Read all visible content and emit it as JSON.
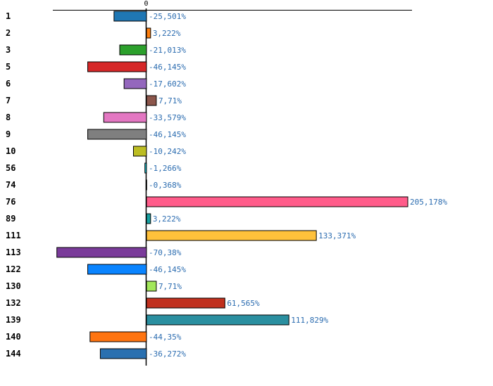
{
  "chart_data": {
    "type": "bar",
    "orientation": "horizontal",
    "title": "",
    "xlabel": "",
    "ylabel": "",
    "zero_tick_label": "0",
    "xlim": [
      -100,
      225
    ],
    "grid": false,
    "categories": [
      "1",
      "2",
      "3",
      "5",
      "6",
      "7",
      "8",
      "9",
      "10",
      "56",
      "74",
      "76",
      "89",
      "111",
      "113",
      "122",
      "130",
      "132",
      "139",
      "140",
      "144"
    ],
    "values": [
      -25.501,
      3.222,
      -21.013,
      -46.145,
      -17.602,
      7.71,
      -33.579,
      -46.145,
      -10.242,
      -1.266,
      -0.368,
      205.178,
      3.222,
      133.371,
      -70.38,
      -46.145,
      7.71,
      61.565,
      111.829,
      -44.35,
      -36.272
    ],
    "value_labels": [
      "-25,501%",
      "3,222%",
      "-21,013%",
      "-46,145%",
      "-17,602%",
      "7,71%",
      "-33,579%",
      "-46,145%",
      "-10,242%",
      "-1,266%",
      "-0,368%",
      "205,178%",
      "3,222%",
      "133,371%",
      "-70,38%",
      "-46,145%",
      "7,71%",
      "61,565%",
      "111,829%",
      "-44,35%",
      "-36,272%"
    ],
    "colors": [
      "#1f77b4",
      "#ff7f0e",
      "#2ca02c",
      "#d62728",
      "#9467bd",
      "#8c564b",
      "#e377c2",
      "#7f7f7f",
      "#bcbd22",
      "#17becf",
      "#1f77b4",
      "#ff5c8a",
      "#17a2a2",
      "#ffc13b",
      "#7a3b9a",
      "#0a84ff",
      "#a3e75a",
      "#c0301e",
      "#2a8fa0",
      "#ff7410",
      "#2a70b0"
    ]
  }
}
